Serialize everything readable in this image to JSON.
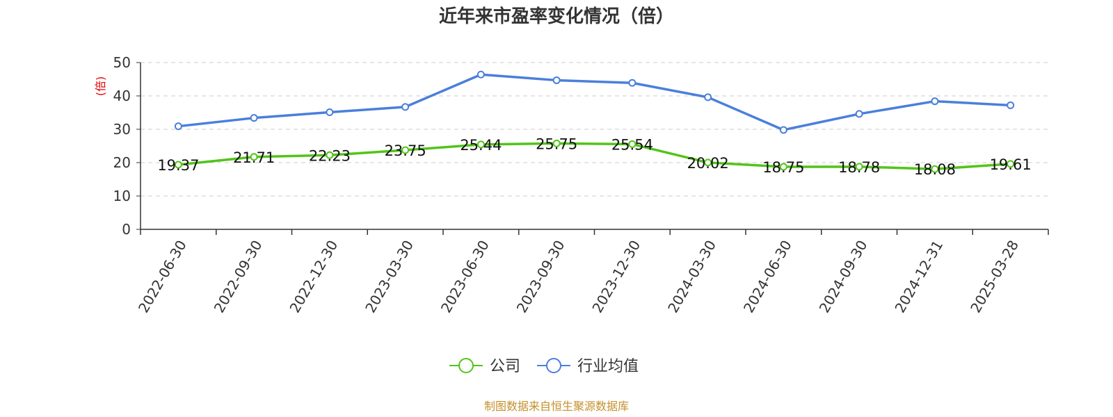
{
  "chart_data": {
    "type": "line",
    "title": "近年来市盈率变化情况（倍）",
    "ylabel": "(倍)",
    "ylim": [
      0,
      50
    ],
    "yticks": [
      0,
      10,
      20,
      30,
      40,
      50
    ],
    "grid": true,
    "legend_position": "bottom-center",
    "categories": [
      "2022-06-30",
      "2022-09-30",
      "2022-12-30",
      "2023-03-30",
      "2023-06-30",
      "2023-09-30",
      "2023-12-30",
      "2024-03-30",
      "2024-06-30",
      "2024-09-30",
      "2024-12-31",
      "2025-03-28"
    ],
    "series": [
      {
        "name": "公司",
        "color": "#52c41a",
        "values": [
          19.37,
          21.71,
          22.23,
          23.75,
          25.44,
          25.75,
          25.54,
          20.02,
          18.75,
          18.78,
          18.08,
          19.61
        ],
        "labels": [
          "19.37",
          "21.71",
          "22.23",
          "23.75",
          "25.44",
          "25.75",
          "25.54",
          "20.02",
          "18.75",
          "18.78",
          "18.08",
          "19.61"
        ]
      },
      {
        "name": "行业均值",
        "color": "#4a7fdc",
        "values": [
          30.9,
          33.4,
          35.1,
          36.7,
          46.4,
          44.7,
          43.9,
          39.6,
          29.8,
          34.6,
          38.4,
          37.2
        ]
      }
    ],
    "source": "制图数据来自恒生聚源数据库"
  },
  "colors": {
    "ylabel": "#e60000",
    "source": "#c4902c",
    "grid": "#cccccc",
    "axis": "#333333"
  }
}
